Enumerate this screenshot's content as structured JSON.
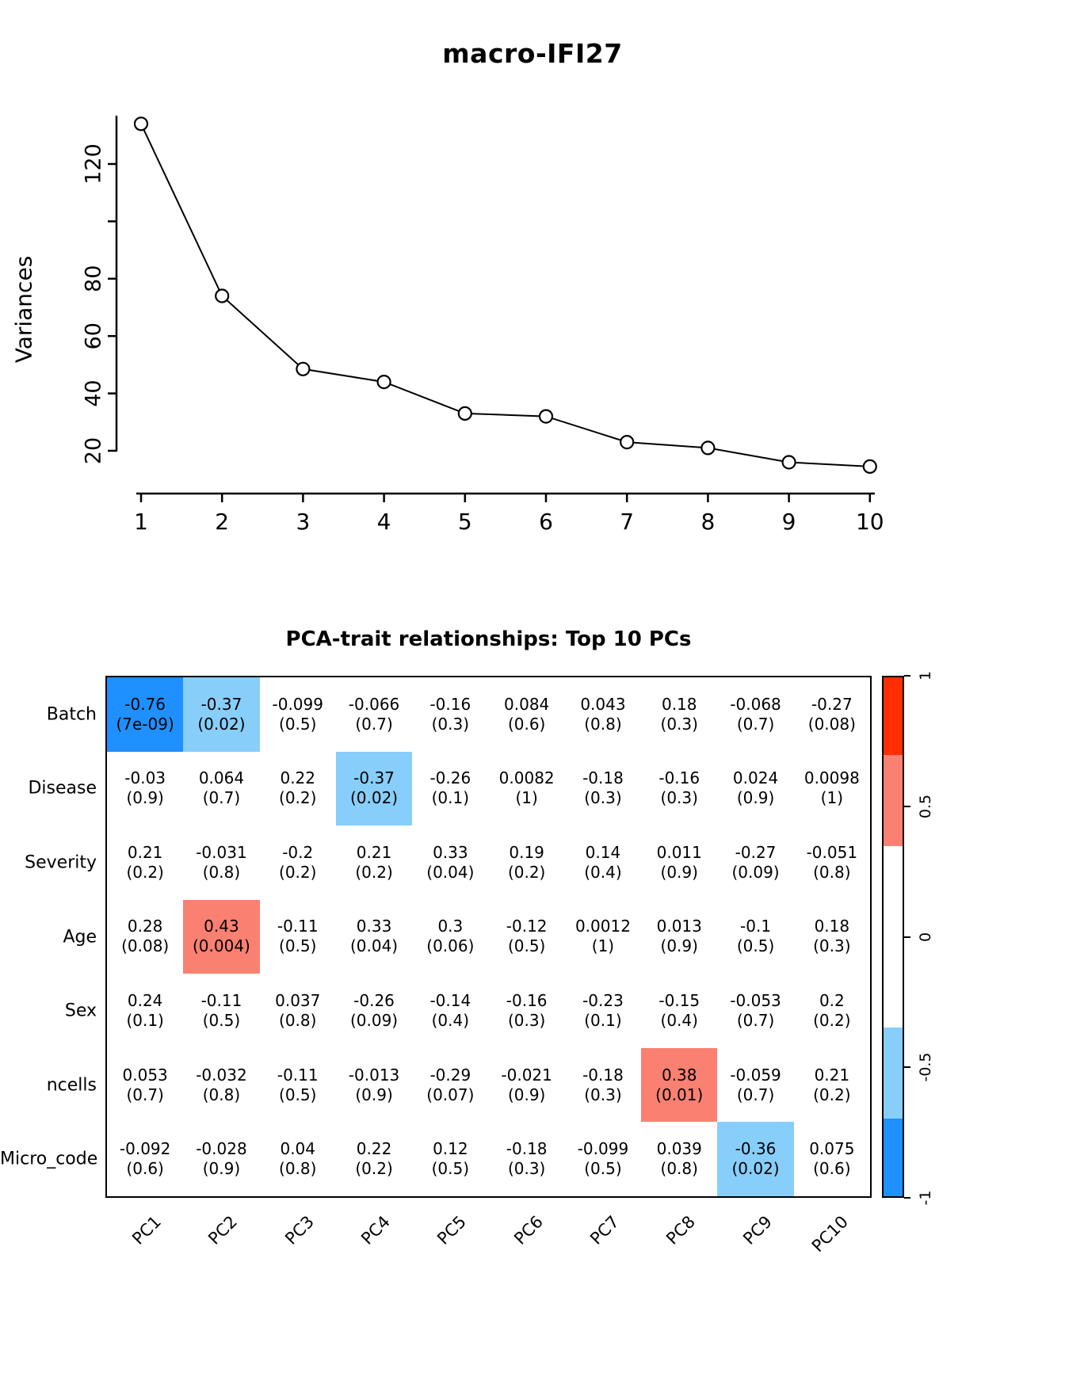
{
  "chart_data": [
    {
      "type": "line",
      "title": "macro-IFI27",
      "ylabel": "Variances",
      "xlabel": "",
      "x": [
        1,
        2,
        3,
        4,
        5,
        6,
        7,
        8,
        9,
        10
      ],
      "values": [
        134,
        74,
        48.5,
        44,
        33,
        32,
        23,
        21,
        16,
        14.5
      ],
      "x_tick_labels": [
        "1",
        "2",
        "3",
        "4",
        "5",
        "6",
        "7",
        "8",
        "9",
        "10"
      ],
      "y_ticks": [
        20,
        40,
        60,
        80,
        100,
        120
      ],
      "y_tick_labels": [
        "20",
        "40",
        "60",
        "80",
        "",
        "120"
      ],
      "ylim": [
        14,
        140
      ],
      "marker": "open-circle",
      "grid": false
    },
    {
      "type": "heatmap",
      "title": "PCA-trait relationships: Top 10 PCs",
      "rows": [
        "Batch",
        "Disease",
        "Severity",
        "Age",
        "Sex",
        "ncells",
        "Micro_code"
      ],
      "columns": [
        "PC1",
        "PC2",
        "PC3",
        "PC4",
        "PC5",
        "PC6",
        "PC7",
        "PC8",
        "PC9",
        "PC10"
      ],
      "correlations": [
        [
          "-0.76",
          "-0.37",
          "-0.099",
          "-0.066",
          "-0.16",
          "0.084",
          "0.043",
          "0.18",
          "-0.068",
          "-0.27"
        ],
        [
          "-0.03",
          "0.064",
          "0.22",
          "-0.37",
          "-0.26",
          "0.0082",
          "-0.18",
          "-0.16",
          "0.024",
          "0.0098"
        ],
        [
          "0.21",
          "-0.031",
          "-0.2",
          "0.21",
          "0.33",
          "0.19",
          "0.14",
          "0.011",
          "-0.27",
          "-0.051"
        ],
        [
          "0.28",
          "0.43",
          "-0.11",
          "0.33",
          "0.3",
          "-0.12",
          "0.0012",
          "0.013",
          "-0.1",
          "0.18"
        ],
        [
          "0.24",
          "-0.11",
          "0.037",
          "-0.26",
          "-0.14",
          "-0.16",
          "-0.23",
          "-0.15",
          "-0.053",
          "0.2"
        ],
        [
          "0.053",
          "-0.032",
          "-0.11",
          "-0.013",
          "-0.29",
          "-0.021",
          "-0.18",
          "0.38",
          "-0.059",
          "0.21"
        ],
        [
          "-0.092",
          "-0.028",
          "0.04",
          "0.22",
          "0.12",
          "-0.18",
          "-0.099",
          "0.039",
          "-0.36",
          "0.075"
        ]
      ],
      "pvalues": [
        [
          "7e-09",
          "0.02",
          "0.5",
          "0.7",
          "0.3",
          "0.6",
          "0.8",
          "0.3",
          "0.7",
          "0.08"
        ],
        [
          "0.9",
          "0.7",
          "0.2",
          "0.02",
          "0.1",
          "1",
          "0.3",
          "0.3",
          "0.9",
          "1"
        ],
        [
          "0.2",
          "0.8",
          "0.2",
          "0.2",
          "0.04",
          "0.2",
          "0.4",
          "0.9",
          "0.09",
          "0.8"
        ],
        [
          "0.08",
          "0.004",
          "0.5",
          "0.04",
          "0.06",
          "0.5",
          "1",
          "0.9",
          "0.5",
          "0.3"
        ],
        [
          "0.1",
          "0.5",
          "0.8",
          "0.09",
          "0.4",
          "0.3",
          "0.1",
          "0.4",
          "0.7",
          "0.2"
        ],
        [
          "0.7",
          "0.8",
          "0.5",
          "0.9",
          "0.07",
          "0.9",
          "0.3",
          "0.01",
          "0.7",
          "0.2"
        ],
        [
          "0.6",
          "0.9",
          "0.8",
          "0.2",
          "0.5",
          "0.3",
          "0.5",
          "0.8",
          "0.02",
          "0.6"
        ]
      ],
      "palette": {
        "strong_negative": "#1E90FF",
        "weak_negative": "#87CEFA",
        "nonsignificant": "#FFFFFF",
        "weak_positive": "#FA8072",
        "strong_positive": "#FF2D00",
        "weak_threshold": 0.35,
        "strong_threshold": 0.7
      },
      "legend": {
        "range": [
          -1,
          1
        ],
        "tick_labels": [
          "1",
          "0.5",
          "0",
          "-0.5",
          "-1"
        ],
        "tick_positions": [
          0,
          0.25,
          0.5,
          0.75,
          1
        ],
        "bands": [
          {
            "color": "#FF2D00",
            "span": 0.15
          },
          {
            "color": "#FA8072",
            "span": 0.175
          },
          {
            "color": "#FFFFFF",
            "span": 0.35
          },
          {
            "color": "#87CEFA",
            "span": 0.175
          },
          {
            "color": "#1E90FF",
            "span": 0.15
          }
        ]
      }
    }
  ]
}
